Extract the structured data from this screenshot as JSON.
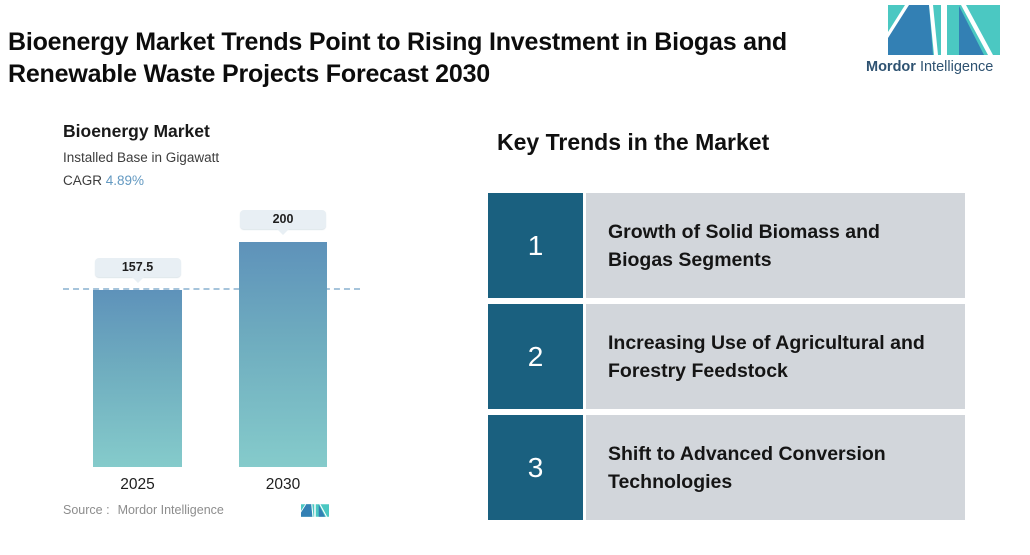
{
  "header": {
    "title": "Bioenergy Market Trends Point to Rising Investment in Biogas and\nRenewable Waste Projects Forecast 2030"
  },
  "brand": {
    "name_bold": "Mordor",
    "name_regular": " Intelligence",
    "mark_teal": "#4bc8c2",
    "mark_blue": "#3380b4",
    "wordmark_color": "#2e5271"
  },
  "chart": {
    "title": "Bioenergy Market",
    "subtitle": "Installed Base in Gigawatt",
    "cagr_label": "CAGR",
    "cagr_value": "4.89%",
    "source_label": "Source :",
    "source_value": "Mordor Intelligence"
  },
  "chart_data": {
    "type": "bar",
    "title": "Bioenergy Market",
    "subtitle": "Installed Base in Gigawatt",
    "categories": [
      "2025",
      "2030"
    ],
    "values": [
      157.5,
      200
    ],
    "value_labels": [
      "157.5",
      "200"
    ],
    "cagr_percent": 4.89,
    "xlabel": "",
    "ylabel": "Installed Base in Gigawatt",
    "ylim": [
      0,
      200
    ],
    "grid": false,
    "reference_line_value": 157.5,
    "bar_color_top": "#5e92ba",
    "bar_color_bottom": "#85cbcb",
    "value_pill_bg": "#e8eff4",
    "dashed_line_color": "#a6c4db"
  },
  "trends": {
    "heading": "Key Trends in the Market",
    "number_bg": "#1a607f",
    "row_bg": "#d2d6db",
    "items": [
      {
        "number": "1",
        "text": "Growth of Solid Biomass and Biogas Segments"
      },
      {
        "number": "2",
        "text": "Increasing Use of Agricultural and Forestry Feedstock"
      },
      {
        "number": "3",
        "text": "Shift to Advanced Conversion Technologies"
      }
    ]
  }
}
